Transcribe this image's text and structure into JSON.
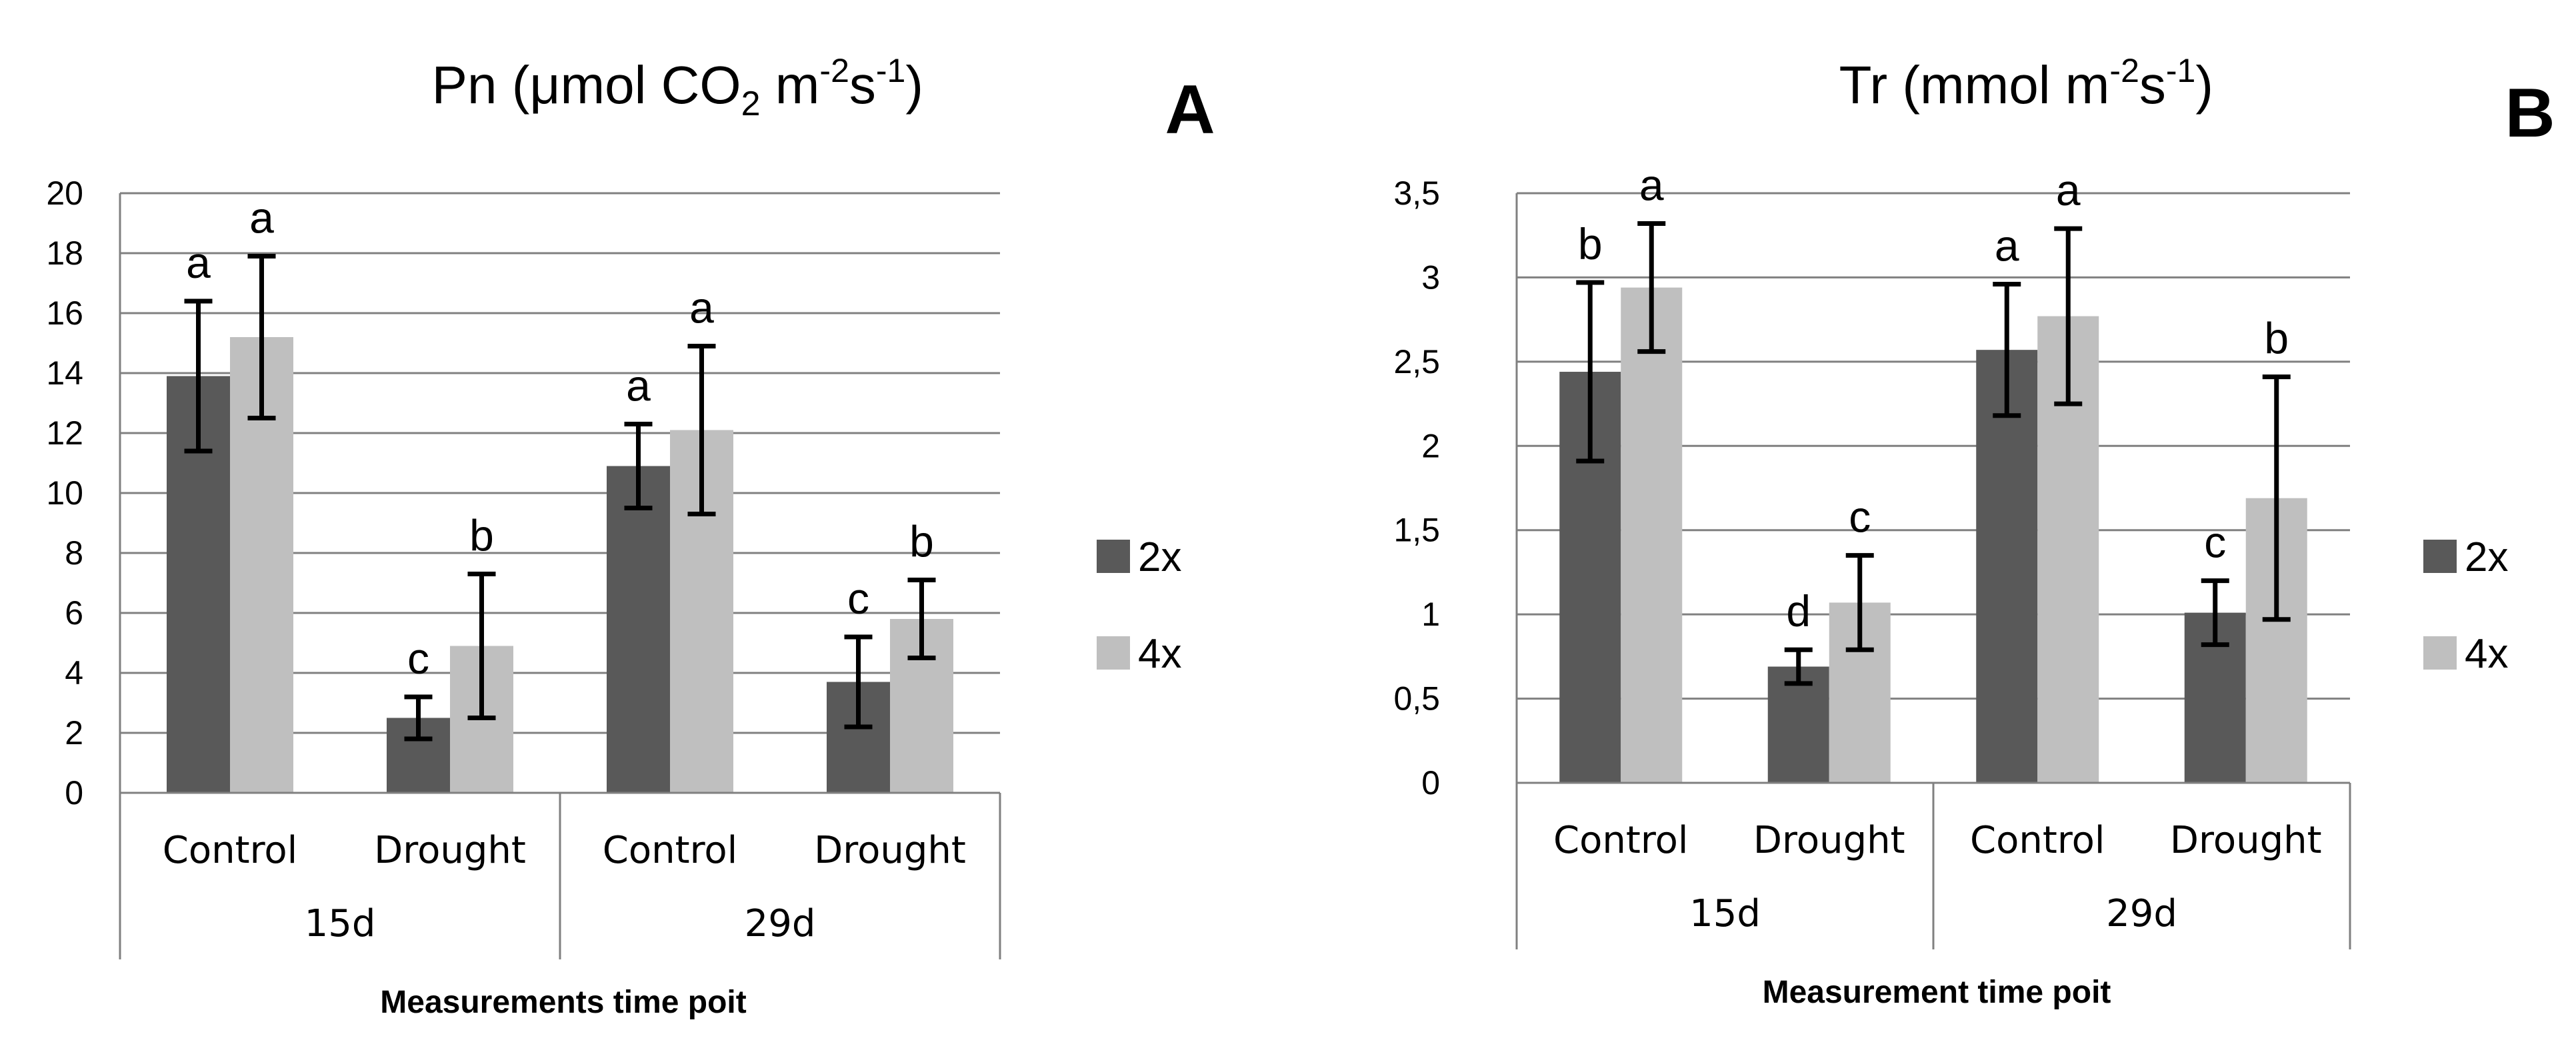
{
  "chart_data": [
    {
      "type": "bar",
      "panel_label": "A",
      "title": {
        "main": "Pn (μmol CO",
        "sub": "2",
        "mid": " m",
        "sup1": "-2",
        "s": "s",
        "sup2": "-1",
        "end": ")"
      },
      "xlabel": "Measurements time poit",
      "ylim": [
        0,
        20
      ],
      "yticks": [
        "0",
        "2",
        "4",
        "6",
        "8",
        "10",
        "12",
        "14",
        "16",
        "18",
        "20"
      ],
      "ytick_values": [
        0,
        2,
        4,
        6,
        8,
        10,
        12,
        14,
        16,
        18,
        20
      ],
      "groups": [
        "15d",
        "29d"
      ],
      "categories": [
        "Control",
        "Drought",
        "Control",
        "Drought"
      ],
      "series": [
        {
          "name": "2x",
          "values": [
            13.9,
            2.5,
            10.9,
            3.7
          ],
          "errors": [
            2.5,
            0.7,
            1.4,
            1.5
          ],
          "labels": [
            "a",
            "c",
            "a",
            "c"
          ]
        },
        {
          "name": "4x",
          "values": [
            15.2,
            4.9,
            12.1,
            5.8
          ],
          "errors": [
            2.7,
            2.4,
            2.8,
            1.3
          ],
          "labels": [
            "a",
            "b",
            "a",
            "b"
          ]
        }
      ],
      "colors": {
        "2x": "#595959",
        "4x": "#bfbfbf"
      }
    },
    {
      "type": "bar",
      "panel_label": "B",
      "title": {
        "main": "Tr (mmol m",
        "sup1": "-2",
        "s": "s",
        "sup2": "-1",
        "end": ")"
      },
      "xlabel": "Measurement time poit",
      "ylim": [
        0,
        3.5
      ],
      "yticks": [
        "0",
        "0,5",
        "1",
        "1,5",
        "2",
        "2,5",
        "3",
        "3,5"
      ],
      "ytick_values": [
        0,
        0.5,
        1,
        1.5,
        2,
        2.5,
        3,
        3.5
      ],
      "groups": [
        "15d",
        "29d"
      ],
      "categories": [
        "Control",
        "Drought",
        "Control",
        "Drought"
      ],
      "series": [
        {
          "name": "2x",
          "values": [
            2.44,
            0.69,
            2.57,
            1.01
          ],
          "errors": [
            0.53,
            0.1,
            0.39,
            0.19
          ],
          "labels": [
            "b",
            "d",
            "a",
            "c"
          ]
        },
        {
          "name": "4x",
          "values": [
            2.94,
            1.07,
            2.77,
            1.69
          ],
          "errors": [
            0.38,
            0.28,
            0.52,
            0.72
          ],
          "labels": [
            "a",
            "c",
            "a",
            "b"
          ]
        }
      ],
      "colors": {
        "2x": "#595959",
        "4x": "#bfbfbf"
      }
    }
  ]
}
